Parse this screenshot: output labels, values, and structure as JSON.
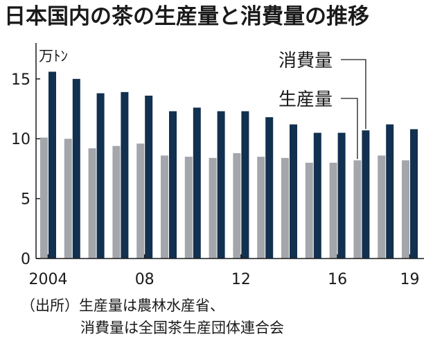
{
  "title": "日本国内の茶の生産量と消費量の推移",
  "chart_data": {
    "type": "bar",
    "unit_label": "万ﾄﾝ",
    "categories": [
      "2004",
      "2005",
      "2006",
      "2007",
      "2008",
      "2009",
      "2010",
      "2011",
      "2012",
      "2013",
      "2014",
      "2015",
      "2016",
      "2017",
      "2018",
      "2019"
    ],
    "x_tick_labels": [
      {
        "category": "2004",
        "label": "2004"
      },
      {
        "category": "2008",
        "label": "08"
      },
      {
        "category": "2012",
        "label": "12"
      },
      {
        "category": "2016",
        "label": "16"
      },
      {
        "category": "2019",
        "label": "19"
      }
    ],
    "series": [
      {
        "name": "生産量",
        "color": "#a3a6aa",
        "values": [
          10.1,
          10.0,
          9.2,
          9.4,
          9.6,
          8.6,
          8.5,
          8.4,
          8.8,
          8.5,
          8.4,
          8.0,
          8.0,
          8.2,
          8.6,
          8.2
        ]
      },
      {
        "name": "消費量",
        "color": "#12304f",
        "values": [
          15.6,
          15.0,
          13.8,
          13.9,
          13.6,
          12.3,
          12.6,
          12.3,
          12.3,
          11.8,
          11.2,
          10.5,
          10.5,
          10.7,
          11.2,
          10.8
        ]
      }
    ],
    "ylim": [
      0,
      18
    ],
    "yticks": [
      0,
      5,
      10,
      15
    ],
    "grid": false,
    "legend": "callout labels top-right"
  },
  "source": {
    "line1": "（出所）生産量は農林水産省、",
    "line2": "消費量は全国茶生産団体連合会"
  }
}
